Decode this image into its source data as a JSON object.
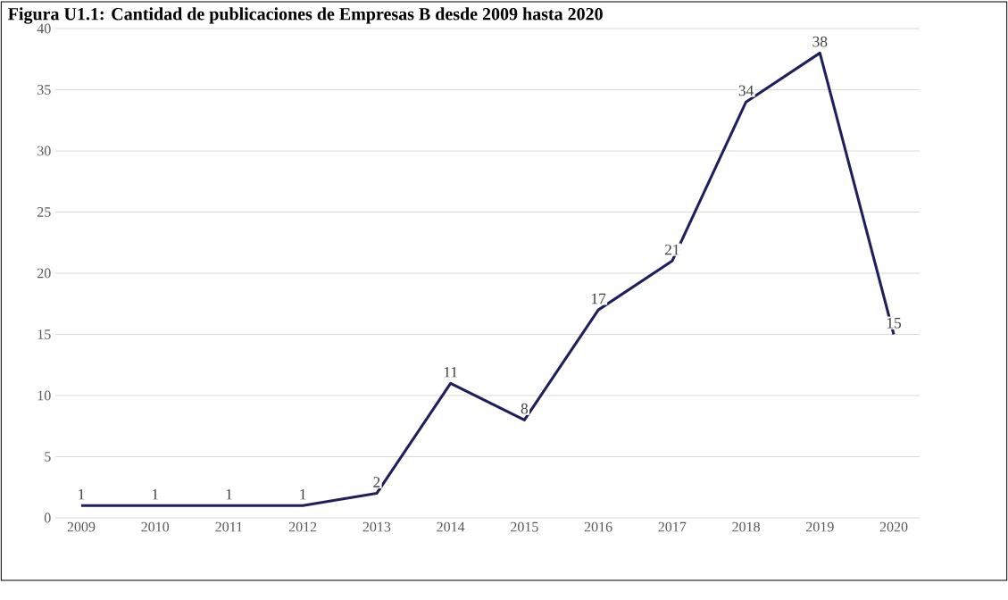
{
  "chart_data": {
    "type": "line",
    "title": "Figura U1.1: Cantidad de publicaciones de Empresas B desde 2009 hasta 2020",
    "categories": [
      "2009",
      "2010",
      "2011",
      "2012",
      "2013",
      "2014",
      "2015",
      "2016",
      "2017",
      "2018",
      "2019",
      "2020"
    ],
    "series": [
      {
        "color": "#1f1f5c",
        "values": [
          1,
          1,
          1,
          1,
          2,
          11,
          8,
          17,
          21,
          34,
          38,
          15
        ]
      }
    ],
    "ylim": [
      0,
      40
    ],
    "yticks": [
      0,
      5,
      10,
      15,
      20,
      25,
      30,
      35,
      40
    ],
    "grid": "y",
    "data_labels": true,
    "marker": "none",
    "line_style": "solid"
  }
}
